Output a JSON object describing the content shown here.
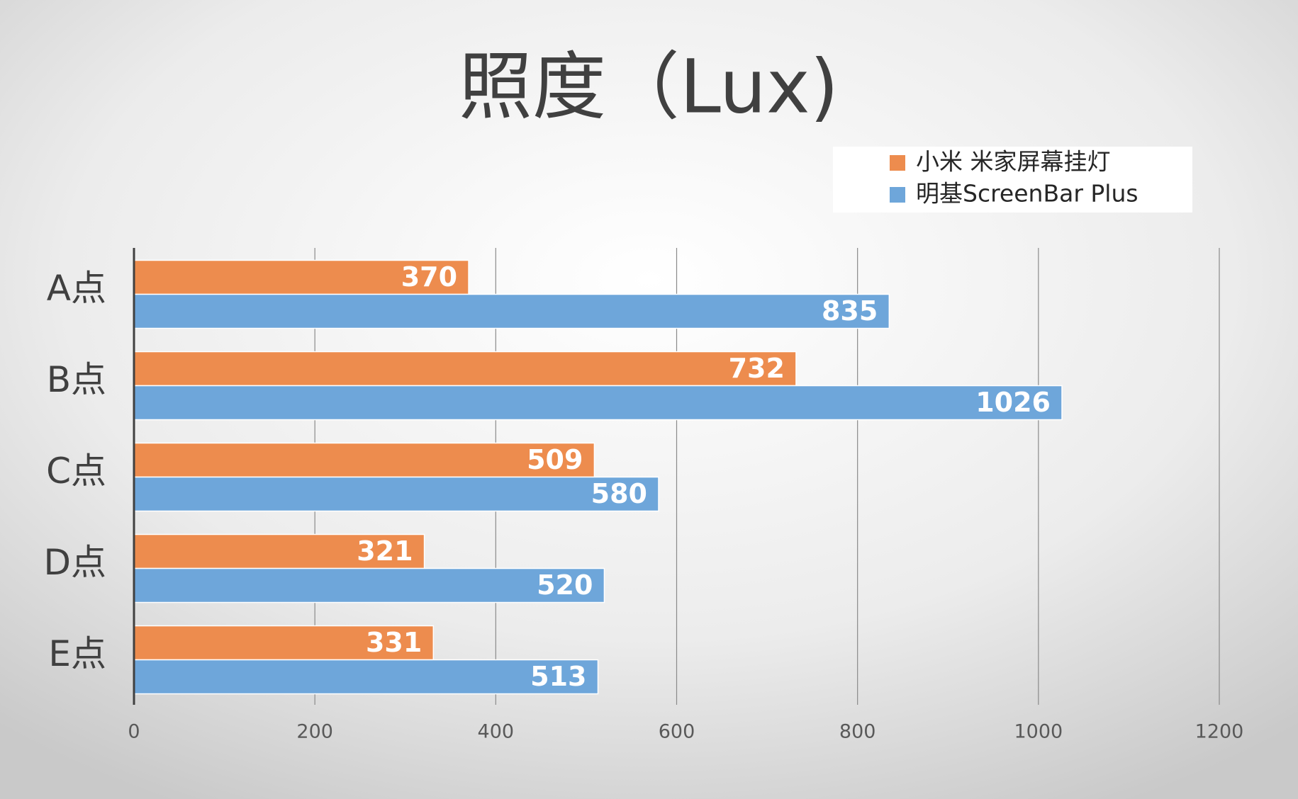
{
  "chart_data": {
    "type": "hbar",
    "title": "照度（Lux)",
    "categories": [
      "A点",
      "B点",
      "C点",
      "D点",
      "E点"
    ],
    "series": [
      {
        "name": "小米 米家屏幕挂灯",
        "color": "#ed8c4e",
        "values": [
          370,
          732,
          509,
          321,
          331
        ]
      },
      {
        "name": "明基ScreenBar Plus",
        "color": "#6ea6da",
        "values": [
          835,
          1026,
          580,
          520,
          513
        ]
      }
    ],
    "xlim": [
      0,
      1200
    ],
    "xticks": [
      0,
      200,
      400,
      600,
      800,
      1000,
      1200
    ],
    "grid": true,
    "legend": "top-right"
  }
}
